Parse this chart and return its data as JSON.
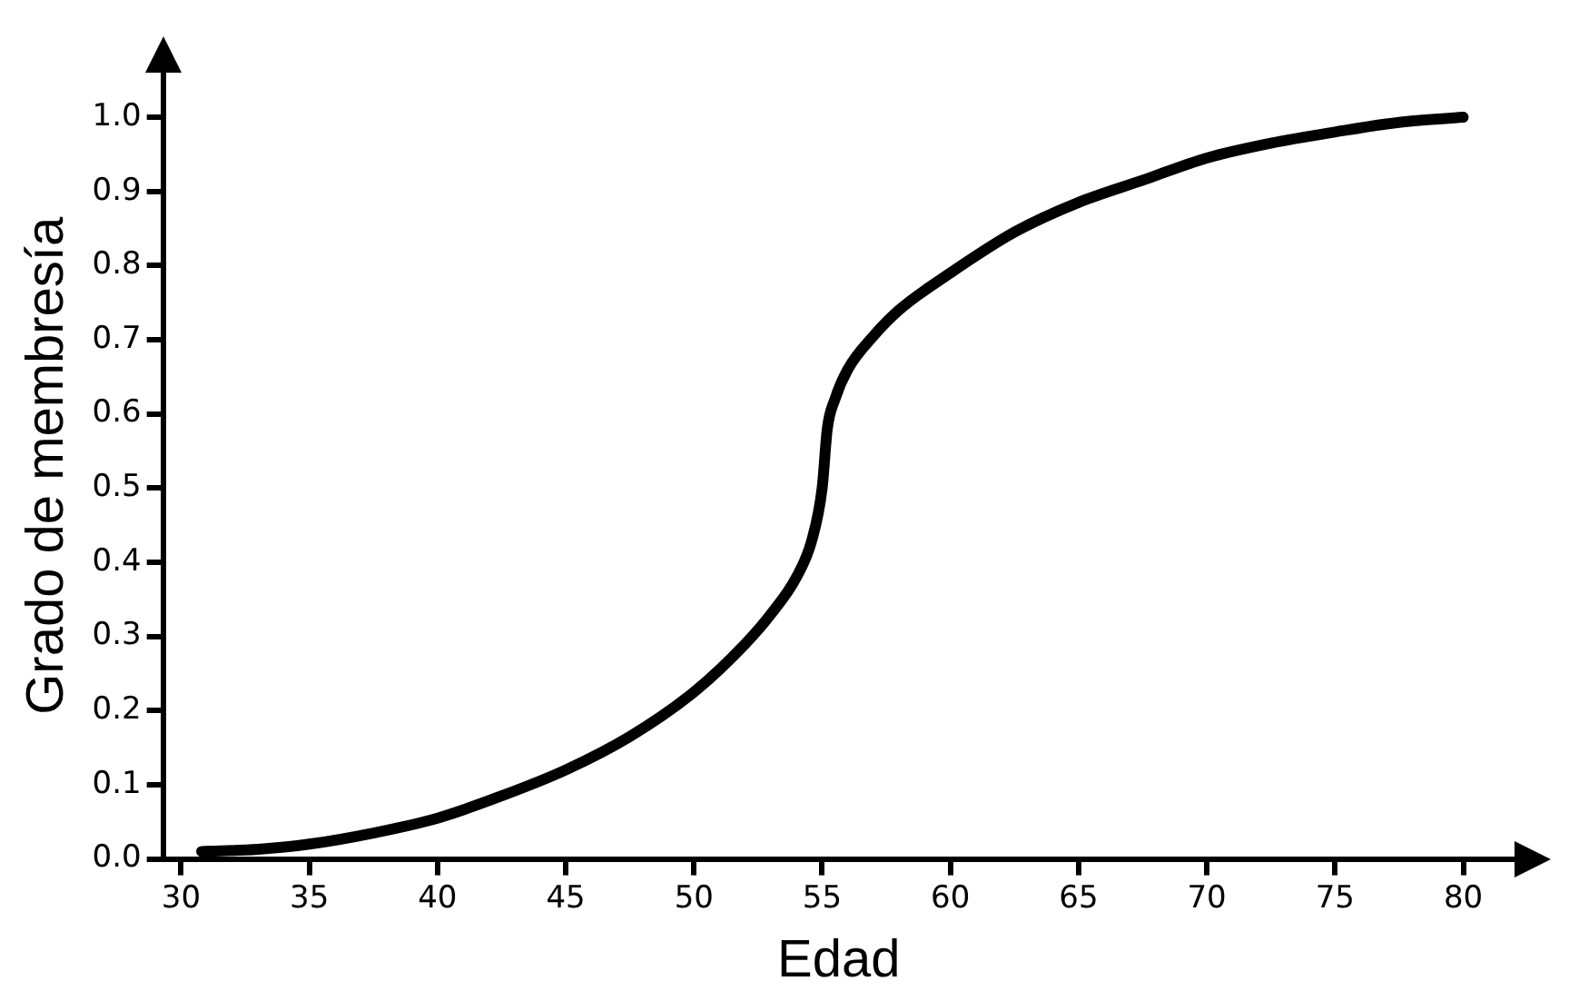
{
  "chart_data": {
    "type": "line",
    "xlabel": "Edad",
    "ylabel": "Grado de membresía",
    "x": [
      30.8,
      33,
      35,
      37.5,
      40,
      42.5,
      45,
      47.5,
      50,
      52,
      53,
      54,
      54.6,
      55,
      55.2,
      55.5,
      56,
      57,
      58,
      60,
      62.5,
      65,
      67.5,
      70,
      72.5,
      75,
      77.5,
      80
    ],
    "series": [
      {
        "color": "#000000",
        "values": [
          0.01,
          0.013,
          0.02,
          0.035,
          0.055,
          0.085,
          0.12,
          0.165,
          0.225,
          0.29,
          0.33,
          0.38,
          0.43,
          0.5,
          0.58,
          0.62,
          0.66,
          0.705,
          0.74,
          0.79,
          0.845,
          0.885,
          0.915,
          0.945,
          0.965,
          0.98,
          0.993,
          1.0
        ]
      }
    ],
    "xlim": [
      29.3,
      82
    ],
    "ylim": [
      0,
      1.06
    ],
    "xticks": [
      30,
      35,
      40,
      45,
      50,
      55,
      60,
      65,
      70,
      75,
      80
    ],
    "yticks": [
      {
        "value": 0,
        "label": "0.0"
      },
      {
        "value": 0.1,
        "label": "0.1"
      },
      {
        "value": 0.2,
        "label": "0.2"
      },
      {
        "value": 0.3,
        "label": "0.3"
      },
      {
        "value": 0.4,
        "label": "0.4"
      },
      {
        "value": 0.5,
        "label": "0.5"
      },
      {
        "value": 0.6,
        "label": "0.6"
      },
      {
        "value": 0.7,
        "label": "0.7"
      },
      {
        "value": 0.8,
        "label": "0.8"
      },
      {
        "value": 0.9,
        "label": "0.9"
      },
      {
        "value": 1,
        "label": "1.0"
      }
    ],
    "grid": false,
    "legend": false,
    "marker": "none",
    "line_style": "solid"
  }
}
